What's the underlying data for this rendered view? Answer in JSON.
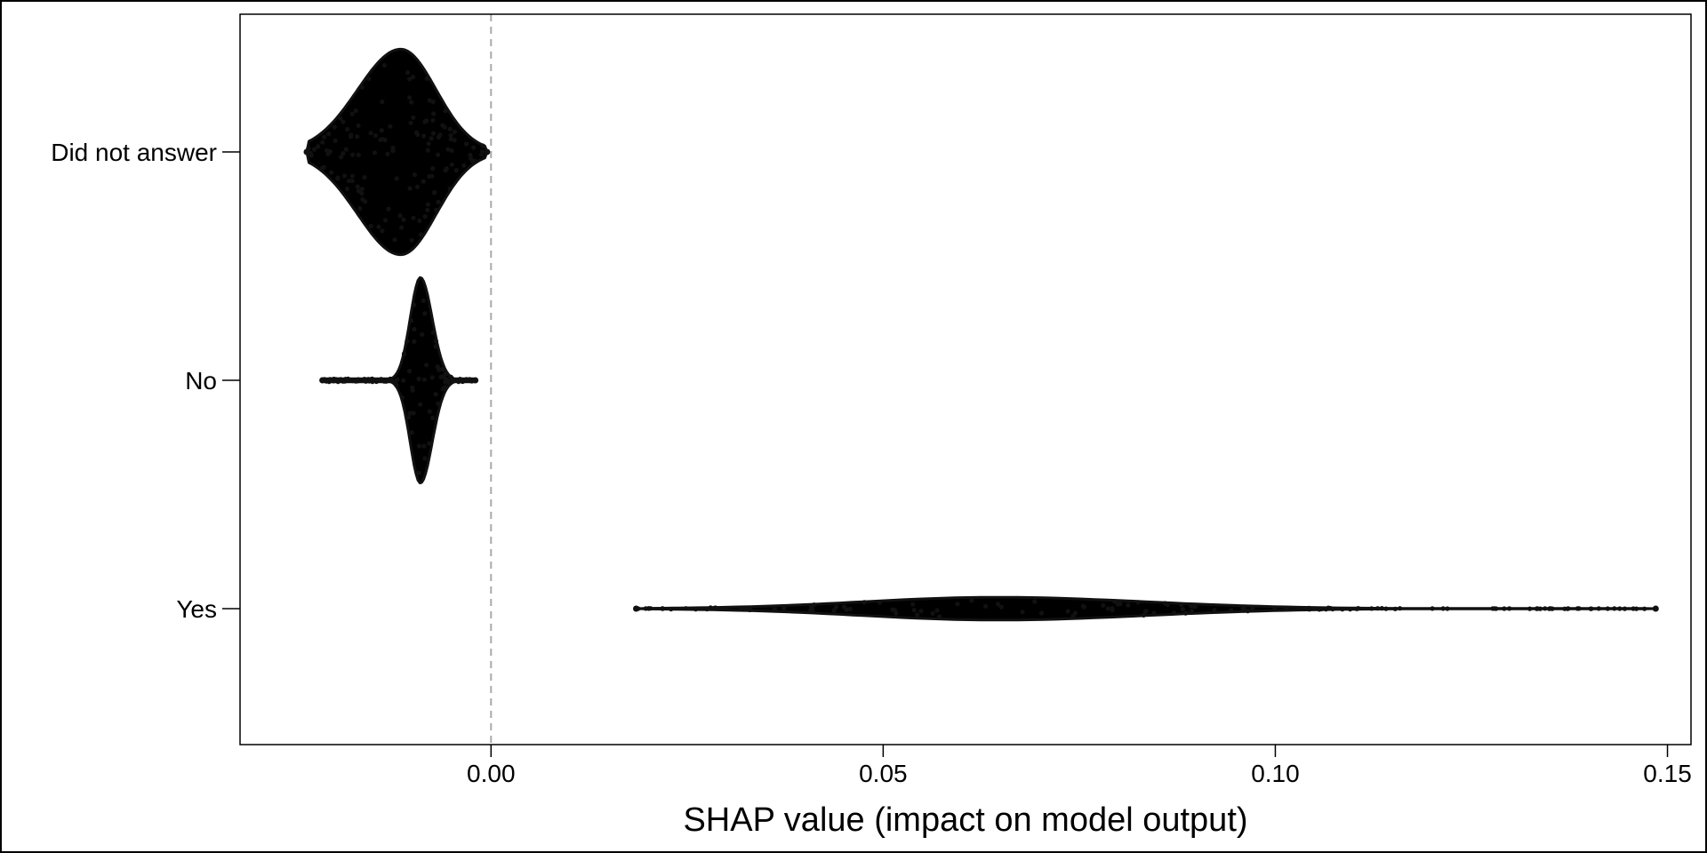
{
  "chart_data": {
    "type": "violin",
    "title": "",
    "xlabel": "SHAP value (impact on model output)",
    "ylabel": "",
    "xlim": [
      -0.032,
      0.153
    ],
    "xticks": [
      0.0,
      0.05,
      0.1,
      0.15
    ],
    "xtick_labels": [
      "0.00",
      "0.05",
      "0.10",
      "0.15"
    ],
    "reference_line": {
      "x": 0.0,
      "style": "dashed",
      "color": "#aaaaaa"
    },
    "colors": {
      "violin": "#000000",
      "frame": "#000000"
    },
    "categories": [
      {
        "name": "Did not answer",
        "min": -0.0235,
        "max": -0.0005,
        "center": -0.0115,
        "spread_left": 0.0055,
        "spread_right": 0.0045,
        "max_half_height": 0.45
      },
      {
        "name": "No",
        "min": -0.0215,
        "max": -0.002,
        "center": -0.009,
        "spread_left": 0.0013,
        "spread_right": 0.0015,
        "max_half_height": 0.45
      },
      {
        "name": "Yes",
        "min": 0.0185,
        "max": 0.1485,
        "center": 0.0645,
        "spread_left": 0.017,
        "spread_right": 0.019,
        "max_half_height": 0.05
      }
    ]
  }
}
